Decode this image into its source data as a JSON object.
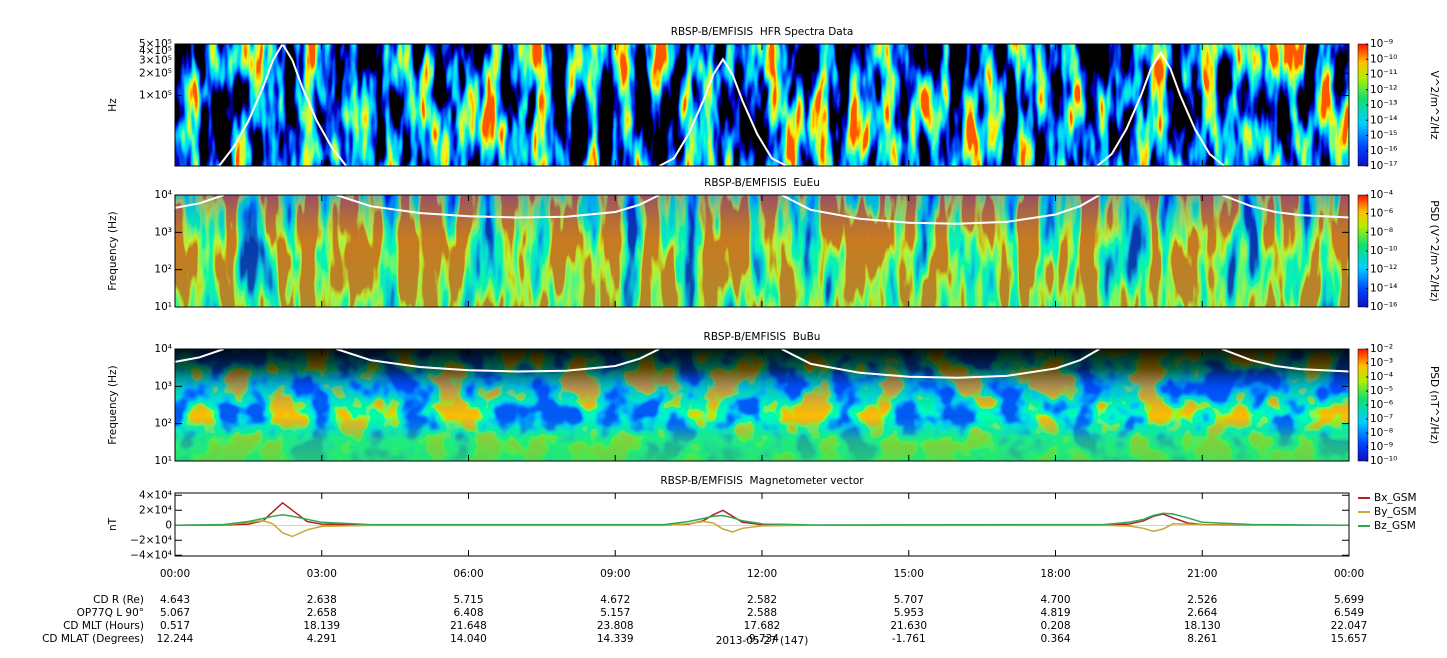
{
  "chart_data": [
    {
      "type": "spectrogram",
      "title": "RBSP-B/EMFISIS  HFR Spectra Data",
      "ylabel": "Hz",
      "yscale": "log",
      "xlim": [
        0,
        24
      ],
      "xticks": [
        0,
        3,
        6,
        9,
        12,
        15,
        18,
        21,
        24
      ],
      "ylim": [
        11000,
        500000
      ],
      "yticks": [
        {
          "value": 100000,
          "label": "1×10⁵"
        },
        {
          "value": 200000,
          "label": "2×10⁵"
        },
        {
          "value": 300000,
          "label": "3×10⁵"
        },
        {
          "value": 400000,
          "label": "4×10⁵"
        },
        {
          "value": 500000,
          "label": "5×10⁵"
        }
      ],
      "clabel": "V^2/m^2/Hz",
      "clim": [
        1e-17,
        1e-09
      ],
      "cticks": [
        {
          "value": 1e-17,
          "label": "10⁻¹⁷"
        },
        {
          "value": 1e-16,
          "label": "10⁻¹⁶"
        },
        {
          "value": 1e-15,
          "label": "10⁻¹⁵"
        },
        {
          "value": 1e-14,
          "label": "10⁻¹⁴"
        },
        {
          "value": 1e-13,
          "label": "10⁻¹³"
        },
        {
          "value": 1e-12,
          "label": "10⁻¹²"
        },
        {
          "value": 1e-11,
          "label": "10⁻¹¹"
        },
        {
          "value": 1e-10,
          "label": "10⁻¹⁰"
        },
        {
          "value": 1e-09,
          "label": "10⁻⁹"
        }
      ],
      "series": [
        {
          "color": "#ffffff",
          "x": [
            0.9,
            1.2,
            1.5,
            1.8,
            2.0,
            2.2,
            2.4,
            2.6,
            2.9,
            3.2,
            3.5,
            7,
            9.9,
            10.2,
            10.5,
            10.8,
            11.0,
            11.2,
            11.4,
            11.6,
            11.9,
            12.2,
            12.5,
            16,
            18.85,
            19.15,
            19.45,
            19.75,
            19.95,
            20.15,
            20.35,
            20.55,
            20.85,
            21.15,
            21.45
          ],
          "values": [
            11000,
            20000,
            45000,
            130000,
            300000,
            500000,
            300000,
            130000,
            45000,
            20000,
            11000,
            null,
            11000,
            14000,
            30000,
            85000,
            190000,
            310000,
            190000,
            85000,
            30000,
            14000,
            11000,
            null,
            11000,
            16000,
            35000,
            100000,
            230000,
            380000,
            230000,
            100000,
            35000,
            16000,
            11000
          ]
        }
      ]
    },
    {
      "type": "spectrogram",
      "title": "RBSP-B/EMFISIS  EuEu",
      "ylabel": "Frequency (Hz)",
      "yscale": "log",
      "xlim": [
        0,
        24
      ],
      "xticks": [
        0,
        3,
        6,
        9,
        12,
        15,
        18,
        21,
        24
      ],
      "ylim": [
        10,
        10000
      ],
      "yticks": [
        {
          "value": 10,
          "label": "10¹"
        },
        {
          "value": 100,
          "label": "10²"
        },
        {
          "value": 1000,
          "label": "10³"
        },
        {
          "value": 10000,
          "label": "10⁴"
        }
      ],
      "clabel": "PSD (V^2/m^2/Hz)",
      "clim": [
        1e-16,
        0.0001
      ],
      "cticks": [
        {
          "value": 1e-16,
          "label": "10⁻¹⁶"
        },
        {
          "value": 1e-14,
          "label": "10⁻¹⁴"
        },
        {
          "value": 1e-12,
          "label": "10⁻¹²"
        },
        {
          "value": 1e-10,
          "label": "10⁻¹⁰"
        },
        {
          "value": 1e-08,
          "label": "10⁻⁸"
        },
        {
          "value": 1e-06,
          "label": "10⁻⁶"
        },
        {
          "value": 0.0001,
          "label": "10⁻⁴"
        }
      ],
      "series": [
        {
          "color": "#ffffff",
          "x": [
            0,
            0.5,
            1.0,
            2.2,
            3.3,
            4,
            5,
            6,
            7,
            8,
            9,
            9.5,
            9.9,
            11.2,
            12.4,
            13,
            14,
            15,
            16,
            17,
            18,
            18.5,
            18.9,
            20.2,
            21.4,
            22,
            22.5,
            23,
            24
          ],
          "values": [
            4500,
            6000,
            10000,
            null,
            10000,
            5000,
            3300,
            2700,
            2500,
            2600,
            3500,
            5500,
            10000,
            null,
            10000,
            4000,
            2300,
            1800,
            1700,
            1900,
            3000,
            5000,
            10000,
            null,
            10000,
            5000,
            3500,
            2900,
            2500
          ]
        }
      ]
    },
    {
      "type": "spectrogram",
      "title": "RBSP-B/EMFISIS  BuBu",
      "ylabel": "Frequency (Hz)",
      "yscale": "log",
      "xlim": [
        0,
        24
      ],
      "xticks": [
        0,
        3,
        6,
        9,
        12,
        15,
        18,
        21,
        24
      ],
      "ylim": [
        10,
        10000
      ],
      "yticks": [
        {
          "value": 10,
          "label": "10¹"
        },
        {
          "value": 100,
          "label": "10²"
        },
        {
          "value": 1000,
          "label": "10³"
        },
        {
          "value": 10000,
          "label": "10⁴"
        }
      ],
      "clabel": "PSD (nT^2/Hz)",
      "clim": [
        1e-10,
        0.01
      ],
      "cticks": [
        {
          "value": 1e-10,
          "label": "10⁻¹⁰"
        },
        {
          "value": 1e-09,
          "label": "10⁻⁹"
        },
        {
          "value": 1e-08,
          "label": "10⁻⁸"
        },
        {
          "value": 1e-07,
          "label": "10⁻⁷"
        },
        {
          "value": 1e-06,
          "label": "10⁻⁶"
        },
        {
          "value": 1e-05,
          "label": "10⁻⁵"
        },
        {
          "value": 0.0001,
          "label": "10⁻⁴"
        },
        {
          "value": 0.001,
          "label": "10⁻³"
        },
        {
          "value": 0.01,
          "label": "10⁻²"
        }
      ],
      "series": [
        {
          "color": "#ffffff",
          "x": [
            0,
            0.5,
            1.0,
            2.2,
            3.3,
            4,
            5,
            6,
            7,
            8,
            9,
            9.5,
            9.9,
            11.2,
            12.4,
            13,
            14,
            15,
            16,
            17,
            18,
            18.5,
            18.9,
            20.2,
            21.4,
            22,
            22.5,
            23,
            24
          ],
          "values": [
            4500,
            6000,
            10000,
            null,
            10000,
            5000,
            3300,
            2700,
            2500,
            2600,
            3500,
            5500,
            10000,
            null,
            10000,
            4000,
            2300,
            1800,
            1700,
            1900,
            3000,
            5000,
            10000,
            null,
            10000,
            5000,
            3500,
            2900,
            2500
          ]
        }
      ]
    },
    {
      "type": "line",
      "title": "RBSP-B/EMFISIS  Magnetometer vector",
      "ylabel": "nT",
      "xlim": [
        0,
        24
      ],
      "xticks": [
        {
          "value": 0,
          "label": "00:00"
        },
        {
          "value": 3,
          "label": "03:00"
        },
        {
          "value": 6,
          "label": "06:00"
        },
        {
          "value": 9,
          "label": "09:00"
        },
        {
          "value": 12,
          "label": "12:00"
        },
        {
          "value": 15,
          "label": "15:00"
        },
        {
          "value": 18,
          "label": "18:00"
        },
        {
          "value": 21,
          "label": "21:00"
        },
        {
          "value": 24,
          "label": "00:00"
        }
      ],
      "ylim": [
        -41000,
        43000
      ],
      "yticks": [
        {
          "value": -40000,
          "label": "−4×10⁴"
        },
        {
          "value": -20000,
          "label": "−2×10⁴"
        },
        0,
        {
          "value": 20000,
          "label": "2×10⁴"
        },
        {
          "value": 40000,
          "label": "4×10⁴"
        }
      ],
      "x": [
        0,
        1,
        1.5,
        1.8,
        2.0,
        2.2,
        2.4,
        2.7,
        3,
        4,
        10,
        10.5,
        10.8,
        11,
        11.2,
        11.4,
        11.6,
        12,
        13,
        19,
        19.5,
        19.8,
        20,
        20.2,
        20.4,
        20.7,
        21,
        22,
        24
      ],
      "series": [
        {
          "name": "Bx_GSM",
          "color": "#b22222",
          "values": [
            0,
            200,
            1500,
            6000,
            18000,
            30000,
            20000,
            5000,
            1500,
            200,
            200,
            1500,
            6000,
            14000,
            20000,
            12000,
            4000,
            800,
            100,
            200,
            1500,
            6000,
            12000,
            15000,
            10000,
            3000,
            800,
            100,
            0
          ]
        },
        {
          "name": "By_GSM",
          "color": "#c8a832",
          "values": [
            0,
            500,
            4000,
            6000,
            2000,
            -10000,
            -15000,
            -6000,
            -1500,
            -200,
            -200,
            2000,
            5000,
            3000,
            -5000,
            -9000,
            -4000,
            -800,
            -100,
            -200,
            -1000,
            -4000,
            -8000,
            -5000,
            2000,
            1500,
            500,
            100,
            0
          ]
        },
        {
          "name": "Bz_GSM",
          "color": "#2fa84f",
          "values": [
            0,
            1000,
            5000,
            9000,
            12000,
            14000,
            12000,
            8000,
            4000,
            800,
            800,
            5000,
            9000,
            12000,
            13000,
            10000,
            6000,
            2000,
            300,
            1000,
            4000,
            8000,
            13000,
            16000,
            15000,
            10000,
            4000,
            1000,
            0
          ]
        }
      ]
    }
  ],
  "ephemeris": {
    "rows": [
      {
        "label": "CD R (Re)",
        "values": [
          "4.643",
          "2.638",
          "5.715",
          "4.672",
          "2.582",
          "5.707",
          "4.700",
          "2.526",
          "5.699"
        ]
      },
      {
        "label": "OP77Q L 90°",
        "values": [
          "5.067",
          "2.658",
          "6.408",
          "5.157",
          "2.588",
          "5.953",
          "4.819",
          "2.664",
          "6.549"
        ]
      },
      {
        "label": "CD MLT (Hours)",
        "values": [
          "0.517",
          "18.139",
          "21.648",
          "23.808",
          "17.682",
          "21.630",
          "0.208",
          "18.130",
          "22.047"
        ]
      },
      {
        "label": "CD MLAT (Degrees)",
        "values": [
          "12.244",
          "4.291",
          "14.040",
          "14.339",
          "-9.734",
          "-1.761",
          "0.364",
          "8.261",
          "15.657"
        ]
      }
    ],
    "date": "2013-05-27 (147)"
  }
}
